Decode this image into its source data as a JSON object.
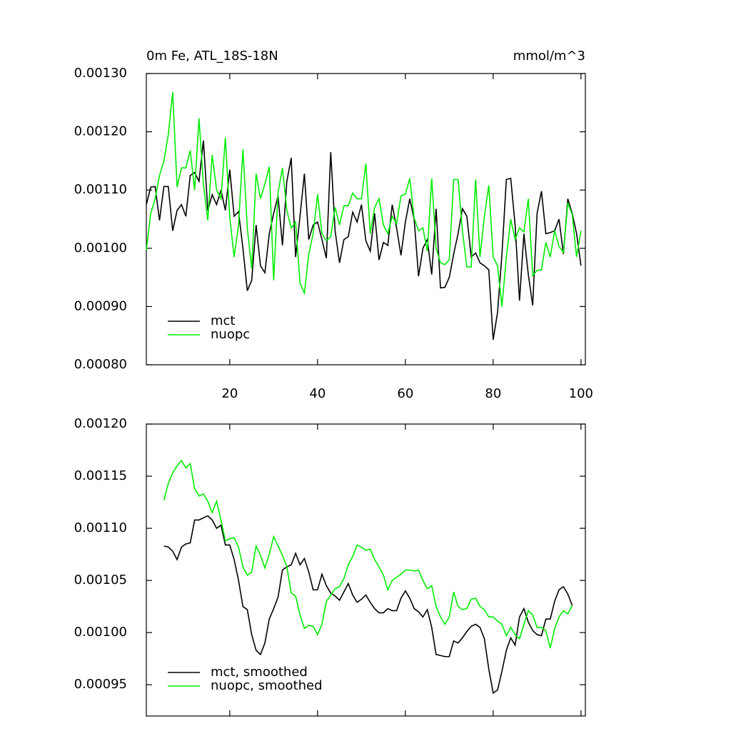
{
  "chart_data": [
    {
      "type": "line",
      "title": "0m Fe, ATL_18S-18N",
      "units_label": "mmol/m^3",
      "x": [
        1,
        2,
        3,
        4,
        5,
        6,
        7,
        8,
        9,
        10,
        11,
        12,
        13,
        14,
        15,
        16,
        17,
        18,
        19,
        20,
        21,
        22,
        23,
        24,
        25,
        26,
        27,
        28,
        29,
        30,
        31,
        32,
        33,
        34,
        35,
        36,
        37,
        38,
        39,
        40,
        41,
        42,
        43,
        44,
        45,
        46,
        47,
        48,
        49,
        50,
        51,
        52,
        53,
        54,
        55,
        56,
        57,
        58,
        59,
        60,
        61,
        62,
        63,
        64,
        65,
        66,
        67,
        68,
        69,
        70,
        71,
        72,
        73,
        74,
        75,
        76,
        77,
        78,
        79,
        80,
        81,
        82,
        83,
        84,
        85,
        86,
        87,
        88,
        89,
        90,
        91,
        92,
        93,
        94,
        95,
        96,
        97,
        98,
        99,
        100
      ],
      "series": [
        {
          "name": "mct",
          "color": "#000000",
          "values": [
            0.001075,
            0.001105,
            0.001106,
            0.001048,
            0.001106,
            0.001106,
            0.00103,
            0.001065,
            0.001075,
            0.001055,
            0.001125,
            0.00113,
            0.001115,
            0.001185,
            0.001065,
            0.001092,
            0.001075,
            0.0011,
            0.001065,
            0.001135,
            0.001055,
            0.001063,
            0.001,
            0.000927,
            0.000945,
            0.00104,
            0.00097,
            0.000958,
            0.001025,
            0.00106,
            0.00109,
            0.001005,
            0.001115,
            0.001155,
            0.000985,
            0.001055,
            0.001128,
            0.001015,
            0.00104,
            0.001045,
            0.001015,
            0.000983,
            0.001165,
            0.00103,
            0.000975,
            0.001015,
            0.00102,
            0.001062,
            0.001045,
            0.001075,
            0.001013,
            0.000995,
            0.00106,
            0.00098,
            0.00101,
            0.001005,
            0.001075,
            0.001035,
            0.000988,
            0.001045,
            0.001085,
            0.00105,
            0.000952,
            0.001,
            0.001015,
            0.000955,
            0.001068,
            0.000932,
            0.000933,
            0.00095,
            0.00099,
            0.001025,
            0.001068,
            0.001055,
            0.000985,
            0.000992,
            0.000975,
            0.00097,
            0.000963,
            0.000843,
            0.00089,
            0.00099,
            0.001118,
            0.00112,
            0.00104,
            0.00091,
            0.001025,
            0.000955,
            0.000902,
            0.00106,
            0.001098,
            0.001025,
            0.001027,
            0.00103,
            0.00105,
            0.00099,
            0.001085,
            0.00106,
            0.001025,
            0.00097
          ]
        },
        {
          "name": "nuopc",
          "color": "#00ee00",
          "values": [
            0.000997,
            0.00106,
            0.001085,
            0.001125,
            0.00115,
            0.001195,
            0.001268,
            0.001105,
            0.001138,
            0.001138,
            0.001168,
            0.0011,
            0.001223,
            0.00111,
            0.001048,
            0.00116,
            0.0011,
            0.001085,
            0.00119,
            0.001053,
            0.000985,
            0.00104,
            0.00117,
            0.001035,
            0.000965,
            0.001128,
            0.001085,
            0.00111,
            0.00114,
            0.000945,
            0.001095,
            0.001138,
            0.001065,
            0.001035,
            0.001045,
            0.00094,
            0.000923,
            0.00099,
            0.001025,
            0.001093,
            0.001025,
            0.001013,
            0.00102,
            0.00107,
            0.00104,
            0.001073,
            0.001073,
            0.001095,
            0.001085,
            0.001085,
            0.001145,
            0.001025,
            0.00107,
            0.001085,
            0.00104,
            0.001025,
            0.001055,
            0.001042,
            0.00109,
            0.001093,
            0.00112,
            0.001052,
            0.00103,
            0.001035,
            0.000995,
            0.00112,
            0.001,
            0.000975,
            0.000972,
            0.00098,
            0.001118,
            0.001118,
            0.00103,
            0.000968,
            0.000968,
            0.001118,
            0.000985,
            0.001055,
            0.001108,
            0.000985,
            0.00097,
            0.0009,
            0.000985,
            0.00105,
            0.001015,
            0.001035,
            0.001028,
            0.001085,
            0.000953,
            0.000962,
            0.000963,
            0.00101,
            0.000985,
            0.00103,
            0.001003,
            0.000993,
            0.001078,
            0.001058,
            0.000985,
            0.00103
          ]
        }
      ],
      "xlim": [
        1,
        101
      ],
      "xticks": [
        20,
        40,
        60,
        80,
        100
      ],
      "xtick_labels": true,
      "ylim": [
        0.0008,
        0.0013
      ],
      "yticks": [
        {
          "value": 0.0008,
          "label": "0.00080"
        },
        {
          "value": 0.0009,
          "label": "0.00090"
        },
        {
          "value": 0.001,
          "label": "0.00100"
        },
        {
          "value": 0.0011,
          "label": "0.00110"
        },
        {
          "value": 0.0012,
          "label": "0.00120"
        },
        {
          "value": 0.0013,
          "label": "0.00130"
        }
      ],
      "legend": "lower left"
    },
    {
      "type": "line",
      "x": [
        5,
        6,
        7,
        8,
        9,
        10,
        11,
        12,
        13,
        14,
        15,
        16,
        17,
        18,
        19,
        20,
        21,
        22,
        23,
        24,
        25,
        26,
        27,
        28,
        29,
        30,
        31,
        32,
        33,
        34,
        35,
        36,
        37,
        38,
        39,
        40,
        41,
        42,
        43,
        44,
        45,
        46,
        47,
        48,
        49,
        50,
        51,
        52,
        53,
        54,
        55,
        56,
        57,
        58,
        59,
        60,
        61,
        62,
        63,
        64,
        65,
        66,
        67,
        68,
        69,
        70,
        71,
        72,
        73,
        74,
        75,
        76,
        77,
        78,
        79,
        80,
        81,
        82,
        83,
        84,
        85,
        86,
        87,
        88,
        89,
        90,
        91,
        92,
        93,
        94,
        95,
        96,
        97,
        98
      ],
      "series": [
        {
          "name": "mct, smoothed",
          "color": "#000000",
          "values": [
            0.001083,
            0.001082,
            0.001078,
            0.00107,
            0.001082,
            0.001085,
            0.001086,
            0.001108,
            0.001108,
            0.00111,
            0.001112,
            0.001108,
            0.0011,
            0.001103,
            0.001084,
            0.001084,
            0.00107,
            0.00105,
            0.001025,
            0.001022,
            0.000998,
            0.000983,
            0.000979,
            0.00099,
            0.001013,
            0.001023,
            0.001034,
            0.00106,
            0.001063,
            0.001065,
            0.001076,
            0.001065,
            0.001071,
            0.001058,
            0.001041,
            0.001041,
            0.001056,
            0.001045,
            0.001038,
            0.001035,
            0.001031,
            0.001039,
            0.001047,
            0.001036,
            0.001029,
            0.001032,
            0.001036,
            0.001029,
            0.001023,
            0.001019,
            0.001019,
            0.001023,
            0.001021,
            0.001021,
            0.001033,
            0.00104,
            0.001033,
            0.001023,
            0.00102,
            0.001015,
            0.001022,
            0.001005,
            0.000979,
            0.000978,
            0.000977,
            0.000977,
            0.000992,
            0.00099,
            0.000995,
            0.001001,
            0.001006,
            0.001008,
            0.001005,
            0.000994,
            0.000965,
            0.000942,
            0.000945,
            0.000963,
            0.000983,
            0.000995,
            0.000988,
            0.001015,
            0.001023,
            0.00101,
            0.001002,
            0.000998,
            0.000997,
            0.001013,
            0.001013,
            0.00103,
            0.001041,
            0.001044,
            0.001037,
            0.001026
          ]
        },
        {
          "name": "nuopc, smoothed",
          "color": "#00ee00",
          "values": [
            0.001127,
            0.001143,
            0.001153,
            0.00116,
            0.001165,
            0.001158,
            0.001162,
            0.001138,
            0.001131,
            0.001133,
            0.001126,
            0.001115,
            0.001126,
            0.001108,
            0.001088,
            0.00109,
            0.001091,
            0.001082,
            0.001063,
            0.001055,
            0.001058,
            0.001083,
            0.001074,
            0.001062,
            0.001075,
            0.001092,
            0.001083,
            0.001074,
            0.001063,
            0.001038,
            0.001035,
            0.001017,
            0.001004,
            0.001007,
            0.001006,
            0.000998,
            0.001008,
            0.00103,
            0.001036,
            0.001042,
            0.001044,
            0.001052,
            0.001065,
            0.001073,
            0.001084,
            0.001082,
            0.001079,
            0.00108,
            0.00107,
            0.001063,
            0.001055,
            0.001041,
            0.00105,
            0.001053,
            0.001056,
            0.00106,
            0.00106,
            0.001059,
            0.00106,
            0.00105,
            0.001042,
            0.001045,
            0.001025,
            0.001015,
            0.001008,
            0.001015,
            0.001039,
            0.001025,
            0.001022,
            0.001023,
            0.001032,
            0.001033,
            0.001025,
            0.001022,
            0.001015,
            0.001015,
            0.001011,
            0.001008,
            0.000997,
            0.001005,
            0.000998,
            0.000994,
            0.001008,
            0.001021,
            0.001017,
            0.001005,
            0.001005,
            0.001002,
            0.000985,
            0.001004,
            0.001015,
            0.001021,
            0.001018,
            0.001026
          ]
        }
      ],
      "xlim": [
        1,
        101
      ],
      "xticks": [
        20,
        40,
        60,
        80,
        100
      ],
      "xtick_labels": false,
      "ylim": [
        0.00092,
        0.0012
      ],
      "yticks": [
        {
          "value": 0.00095,
          "label": "0.00095"
        },
        {
          "value": 0.001,
          "label": "0.00100"
        },
        {
          "value": 0.00105,
          "label": "0.00105"
        },
        {
          "value": 0.0011,
          "label": "0.00110"
        },
        {
          "value": 0.00115,
          "label": "0.00115"
        },
        {
          "value": 0.0012,
          "label": "0.00120"
        }
      ],
      "legend": "lower left"
    }
  ]
}
